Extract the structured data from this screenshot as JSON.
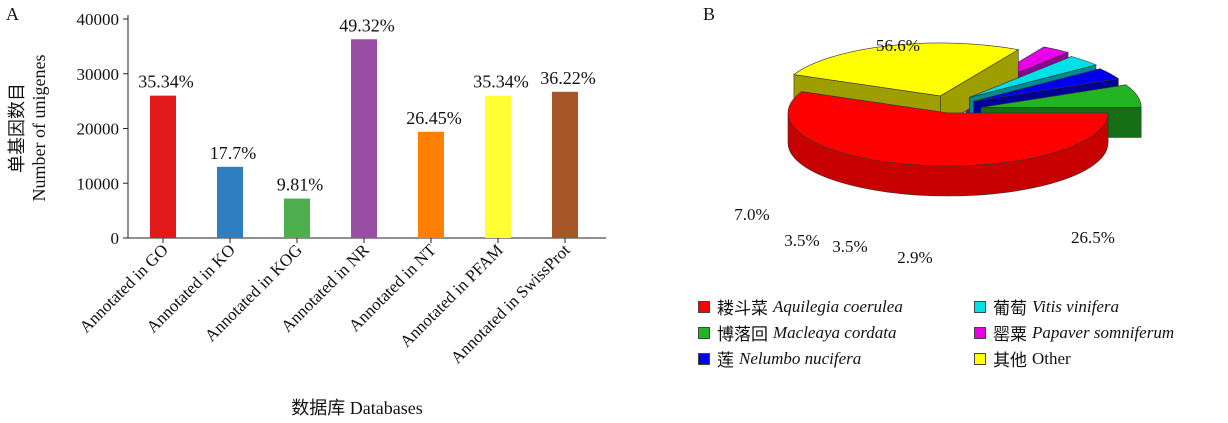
{
  "panel_a_letter": "A",
  "panel_b_letter": "B",
  "colors": {
    "GO": "#e31a1c",
    "KO": "#2d7fc1",
    "KOG": "#4cae4c",
    "NR": "#984ea3",
    "NT": "#ff7f00",
    "PFAM": "#ffff33",
    "SwissProt": "#a65628",
    "aquilegia": "#ff0000",
    "macleaya": "#22b422",
    "nelumbo": "#0000ee",
    "vitis": "#00e0e8",
    "papaver": "#e800e8",
    "other": "#ffff00"
  },
  "chart_data": [
    {
      "type": "bar",
      "ylabel_cn": "单基因数目",
      "ylabel": "Number of unigenes",
      "xlabel": "数据库 Databases",
      "categories": [
        "Annotated in GO",
        "Annotated in KO",
        "Annotated in KOG",
        "Annotated in NR",
        "Annotated in NT",
        "Annotated in PFAM",
        "Annotated in SwissProt"
      ],
      "values": [
        26000,
        13000,
        7200,
        36300,
        19400,
        26000,
        26700
      ],
      "data_labels": [
        "35.34%",
        "17.7%",
        "9.81%",
        "49.32%",
        "26.45%",
        "35.34%",
        "36.22%"
      ],
      "yticks": [
        "0",
        "10000",
        "20000",
        "30000",
        "40000"
      ],
      "ylim": [
        0,
        40000
      ],
      "colors": [
        "#e31a1c",
        "#2d7fc1",
        "#4cae4c",
        "#984ea3",
        "#ff7f00",
        "#ffff33",
        "#a65628"
      ]
    },
    {
      "type": "pie",
      "style": "3d-exploded",
      "slices": [
        {
          "label_cn": "耧斗菜",
          "label": "Aquilegia coerulea",
          "value": 56.6,
          "text": "56.6%",
          "color": "#ff0000"
        },
        {
          "label_cn": "其他",
          "label": "Other",
          "value": 26.5,
          "text": "26.5%",
          "color": "#ffff00"
        },
        {
          "label_cn": "罂粟",
          "label": "Papaver somniferum",
          "value": 2.9,
          "text": "2.9%",
          "color": "#e800e8"
        },
        {
          "label_cn": "葡萄",
          "label": "Vitis vinifera",
          "value": 3.5,
          "text": "3.5%",
          "color": "#00e0e8"
        },
        {
          "label_cn": "莲",
          "label": "Nelumbo nucifera",
          "value": 3.5,
          "text": "3.5%",
          "color": "#0000ee"
        },
        {
          "label_cn": "博落回",
          "label": "Macleaya cordata",
          "value": 7.0,
          "text": "7.0%",
          "color": "#22b422"
        }
      ],
      "legend_order": [
        "Aquilegia coerulea",
        "Vitis vinifera",
        "Macleaya cordata",
        "Papaver somniferum",
        "Nelumbo nucifera",
        "Other"
      ]
    }
  ]
}
